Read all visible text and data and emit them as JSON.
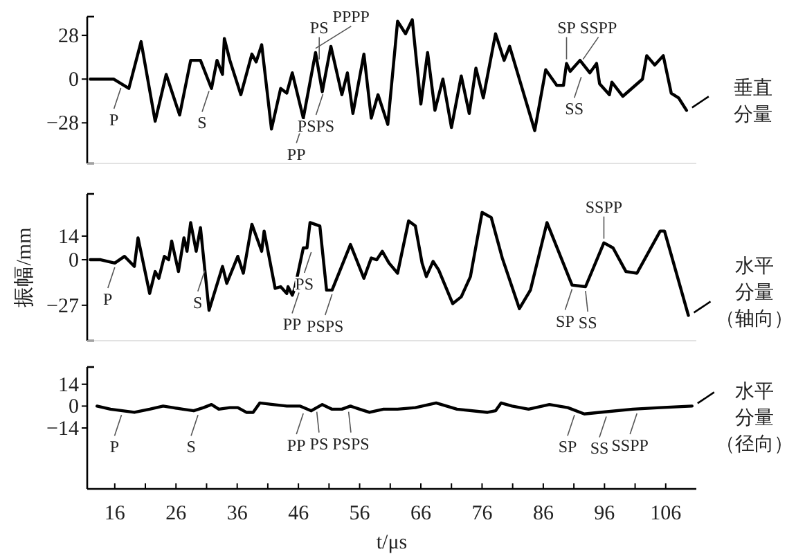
{
  "chart_data": [
    {
      "type": "line",
      "xlim": [
        11.5,
        111
      ],
      "ylim": [
        -54,
        40
      ],
      "yticks": [
        28,
        0,
        -28
      ],
      "tick_labels": "y",
      "series": [
        {
          "name": "垂直分量",
          "color": "#000000",
          "x": [
            12,
            15.8,
            18.3,
            20.3,
            22.6,
            24.4,
            26.6,
            28.4,
            30,
            31.8,
            32.7,
            33.6,
            33.9,
            34.8,
            36.6,
            38.4,
            39.1,
            40,
            41.6,
            43.1,
            44.1,
            45,
            46.8,
            48.8,
            49.9,
            51.3,
            53.1,
            54,
            54.9,
            56.7,
            57.9,
            59,
            60.6,
            62.2,
            63.5,
            64.6,
            66,
            67.1,
            68.3,
            69.6,
            71,
            72.6,
            73.9,
            75,
            76.2,
            78.2,
            79.6,
            80.5,
            84.6,
            86.4,
            88.2,
            89.3,
            89.8,
            90.4,
            92,
            93.6,
            94.7,
            95.2,
            96.8,
            97.2,
            99,
            102.2,
            102.9,
            104.2,
            105.6,
            106.9,
            108.1,
            109.4
          ],
          "values": [
            0,
            0,
            -6,
            24,
            -27,
            3,
            -23,
            12,
            12,
            -6,
            12,
            3,
            26,
            12,
            -10,
            16,
            11,
            22,
            -32,
            -6,
            -9,
            4,
            -25,
            17,
            -8,
            21,
            -10,
            4,
            -22,
            16,
            -25,
            -10,
            -29,
            37,
            29,
            38,
            -16,
            17,
            -20,
            0,
            -31,
            2,
            -22,
            7,
            -12,
            29,
            12,
            21,
            -33,
            6,
            -4,
            -4,
            10,
            5,
            12,
            4,
            10,
            -3,
            -10,
            -2,
            -11,
            0,
            15,
            9,
            15,
            -9,
            -12,
            -20
          ]
        }
      ],
      "annotations": [
        {
          "text": "P",
          "x": 17,
          "y": -3
        },
        {
          "text": "S",
          "x": 31.4,
          "y": -5
        },
        {
          "text": "PP",
          "x": 46.8,
          "y": -25
        },
        {
          "text": "PS",
          "x": 49.4,
          "y": 10
        },
        {
          "text": "PPPP",
          "x": 48.8,
          "y": 17
        },
        {
          "text": "PSPS",
          "x": 50,
          "y": -7
        },
        {
          "text": "SP",
          "x": 89.8,
          "y": 10
        },
        {
          "text": "SSPP",
          "x": 92.5,
          "y": 10
        },
        {
          "text": "SS",
          "x": 92.2,
          "y": 4
        }
      ]
    },
    {
      "type": "line",
      "xlim": [
        11.5,
        111
      ],
      "ylim": [
        -48,
        39
      ],
      "yticks": [
        14,
        0,
        -27
      ],
      "tick_labels": "y",
      "ylabel": "振幅/mm",
      "series": [
        {
          "name": "水平分量（轴向）",
          "color": "#000000",
          "x": [
            12,
            13.7,
            16,
            17.6,
            19.2,
            19.8,
            21.7,
            22.6,
            23.2,
            24.1,
            24.8,
            25.3,
            26.4,
            27.3,
            27.8,
            28.4,
            29.3,
            30,
            31.4,
            33.6,
            34.3,
            36.1,
            37,
            38.4,
            40,
            40.4,
            42.2,
            43.1,
            44.1,
            44.3,
            45,
            45.4,
            46.8,
            47.4,
            47.9,
            49.5,
            50.6,
            51.5,
            54.5,
            56.7,
            57.9,
            58.8,
            59.7,
            60.8,
            62.2,
            64,
            65.1,
            66.2,
            66.9,
            68,
            68.9,
            71.2,
            72.6,
            74.1,
            76,
            77.5,
            79.3,
            82.1,
            83.9,
            86.6,
            90.7,
            92.9,
            95.9,
            97.4,
            99.5,
            101.3,
            105.1,
            105.8,
            109.7
          ],
          "values": [
            0,
            0,
            -2,
            2,
            -4,
            13,
            -20,
            -7,
            -11,
            2,
            0,
            11,
            -7,
            13,
            5,
            22,
            5,
            19,
            -30,
            -4,
            -14,
            2,
            -8,
            21,
            5,
            17,
            -17,
            -16,
            -20,
            -16,
            -21,
            -17,
            7,
            7,
            22,
            20,
            -18,
            -18,
            9,
            -11,
            1,
            0,
            5,
            -2,
            -8,
            23,
            20,
            -2,
            -10,
            -1,
            -6,
            -26,
            -22,
            -10,
            28,
            25,
            1,
            -29,
            -18,
            22,
            -15,
            -16,
            10,
            7,
            -7,
            -8,
            17,
            17,
            -33
          ]
        }
      ],
      "annotations": [
        {
          "text": "P",
          "x": 16,
          "y": -2
        },
        {
          "text": "S",
          "x": 30.7,
          "y": -4
        },
        {
          "text": "PP",
          "x": 46.1,
          "y": -17
        },
        {
          "text": "PS",
          "x": 48.1,
          "y": 7
        },
        {
          "text": "PSPS",
          "x": 51.5,
          "y": -18
        },
        {
          "text": "SP",
          "x": 90.7,
          "y": -15
        },
        {
          "text": "SS",
          "x": 92.9,
          "y": -16
        },
        {
          "text": "SSPP",
          "x": 95.9,
          "y": 10
        }
      ]
    },
    {
      "type": "line",
      "xlim": [
        11.5,
        111
      ],
      "ylim": [
        -53,
        25
      ],
      "yticks": [
        14,
        0,
        -14
      ],
      "xlabel": "t/μs",
      "xticks": [
        16,
        {
          "value": 21,
          "label": null
        },
        26,
        {
          "value": 31,
          "label": null
        },
        36,
        {
          "value": 41,
          "label": null
        },
        46,
        {
          "value": 51,
          "label": null
        },
        56,
        {
          "value": 61,
          "label": null
        },
        66,
        {
          "value": 71,
          "label": null
        },
        76,
        {
          "value": 81,
          "label": null
        },
        86,
        {
          "value": 91,
          "label": null
        },
        96,
        {
          "value": 101,
          "label": null
        },
        106
      ],
      "series": [
        {
          "name": "水平分量（径向）",
          "color": "#000000",
          "x": [
            13.1,
            15.3,
            19.2,
            21.7,
            23.9,
            25.5,
            27.1,
            28.9,
            30.5,
            31.8,
            33,
            34.8,
            36.1,
            37.5,
            38.6,
            39.7,
            41.8,
            44.1,
            46.3,
            48.1,
            49.9,
            51.5,
            53.1,
            54.5,
            56,
            57.6,
            59.9,
            62.2,
            65.1,
            68.5,
            71.9,
            76.9,
            78.2,
            79.1,
            80.9,
            83.6,
            87,
            90,
            92.7,
            95.2,
            100.6,
            105.1,
            110.3
          ],
          "values": [
            0,
            -2,
            -4,
            -2,
            0,
            -1,
            -2,
            -3,
            -1,
            1,
            -2,
            -1,
            -1,
            -4,
            -4,
            2,
            1,
            0,
            0,
            -3,
            1,
            -2,
            -2,
            0,
            -2,
            -4,
            -2,
            -2,
            -1,
            2,
            -2,
            -4,
            -3,
            2,
            0,
            -2,
            1,
            -1,
            -5,
            -4,
            -2,
            -1,
            0
          ]
        }
      ],
      "annotations": [
        {
          "text": "P",
          "x": 17.1,
          "y": -3
        },
        {
          "text": "S",
          "x": 29.6,
          "y": -3
        },
        {
          "text": "PP",
          "x": 46.8,
          "y": -2
        },
        {
          "text": "PS",
          "x": 49,
          "y": -1
        },
        {
          "text": "PSPS",
          "x": 54.2,
          "y": -1
        },
        {
          "text": "SP",
          "x": 91.1,
          "y": -3
        },
        {
          "text": "SS",
          "x": 96.3,
          "y": -4
        },
        {
          "text": "SSPP",
          "x": 101.3,
          "y": -2
        }
      ]
    }
  ]
}
